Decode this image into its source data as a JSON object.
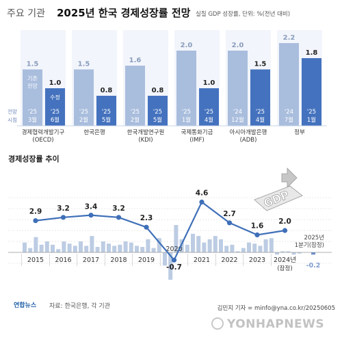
{
  "header": {
    "title_light": "주요 기관",
    "title_bold": "2025년 한국 경제성장률 전망",
    "subtitle": "실질 GDP 성장률, 단위: %(전년 대비)"
  },
  "top_chart": {
    "legend_prev": [
      "기존",
      "전망"
    ],
    "legend_rev": "수정",
    "legend_time": [
      "전망",
      "시점"
    ],
    "institutions": [
      {
        "name": [
          "경제협력개발기구",
          "(OECD)"
        ],
        "prev": 1.5,
        "rev": 1.0,
        "prev_label": "1.5",
        "rev_label": "1.0",
        "prev_time": [
          "'25",
          "3월"
        ],
        "rev_time": [
          "'25",
          "6월"
        ]
      },
      {
        "name": [
          "한국은행"
        ],
        "prev": 1.5,
        "rev": 0.8,
        "prev_label": "1.5",
        "rev_label": "0.8",
        "prev_time": [
          "'25",
          "2월"
        ],
        "rev_time": [
          "'25",
          "5월"
        ]
      },
      {
        "name": [
          "한국개발연구원",
          "(KDI)"
        ],
        "prev": 1.6,
        "rev": 0.8,
        "prev_label": "1.6",
        "rev_label": "0.8",
        "prev_time": [
          "'25",
          "2월"
        ],
        "rev_time": [
          "'25",
          "5월"
        ]
      },
      {
        "name": [
          "국제통화기금",
          "(IMF)"
        ],
        "prev": 2.0,
        "rev": 1.0,
        "prev_label": "2.0",
        "rev_label": "1.0",
        "prev_time": [
          "'25",
          "1월"
        ],
        "rev_time": [
          "'25",
          "4월"
        ]
      },
      {
        "name": [
          "아시아개발은행",
          "(ADB)"
        ],
        "prev": 2.0,
        "rev": 1.5,
        "prev_label": "2.0",
        "rev_label": "1.5",
        "prev_time": [
          "'24",
          "12월"
        ],
        "rev_time": [
          "'25",
          "4월"
        ]
      },
      {
        "name": [
          "정부"
        ],
        "prev": 2.2,
        "rev": 1.8,
        "prev_label": "2.2",
        "rev_label": "1.8",
        "prev_time": [
          "'24",
          "7월"
        ],
        "rev_time": [
          "'25",
          "1월"
        ]
      }
    ]
  },
  "bottom_chart": {
    "title": "경제성장률 추이",
    "annotation": [
      "2025년",
      "1분기(잠정)"
    ],
    "gdp_badge": "GDP",
    "last_label_note": "(잠정)"
  },
  "chart_data": [
    {
      "type": "bar",
      "title": "주요 기관 2025년 한국 경제성장률 전망",
      "ylabel": "실질 GDP 성장률 (%)",
      "categories": [
        "경제협력개발기구(OECD)",
        "한국은행",
        "한국개발연구원(KDI)",
        "국제통화기금(IMF)",
        "아시아개발은행(ADB)",
        "정부"
      ],
      "series": [
        {
          "name": "기존 전망",
          "values": [
            1.5,
            1.5,
            1.6,
            2.0,
            2.0,
            2.2
          ]
        },
        {
          "name": "수정",
          "values": [
            1.0,
            0.8,
            0.8,
            1.0,
            1.5,
            1.8
          ]
        }
      ],
      "ylim": [
        0,
        2.4
      ],
      "grid": false
    },
    {
      "type": "line",
      "title": "경제성장률 추이",
      "x": [
        "2015",
        "2016",
        "2017",
        "2018",
        "2019",
        "2020",
        "2021",
        "2022",
        "2023",
        "2024년"
      ],
      "values": [
        2.9,
        3.2,
        3.4,
        3.2,
        2.3,
        -0.7,
        4.6,
        2.7,
        1.6,
        2.0
      ],
      "labels": [
        "2.9",
        "3.2",
        "3.4",
        "3.2",
        "2.3",
        "-0.7",
        "4.6",
        "2.7",
        "1.6",
        "2.0"
      ],
      "ylim": [
        -1.5,
        5.5
      ],
      "annotation": {
        "text": "2025년 1분기(잠정)",
        "value": -0.2,
        "label": "-0.2"
      },
      "grid": true,
      "colors": {
        "line": "#3e6fb8",
        "marker": "#3e6fb8",
        "quarterly_bars": "#b5c6e0"
      }
    }
  ],
  "quarterly_bars": [
    0.9,
    0.4,
    1.4,
    0.7,
    1.0,
    0.7,
    0.3,
    1.0,
    0.8,
    0.6,
    1.0,
    0.6,
    1.5,
    0.5,
    1.0,
    0.8,
    0.6,
    0.7,
    1.0,
    0.9,
    0.6,
    0.5,
    1.2,
    0.4,
    1.3,
    -1.2,
    -2.5,
    2.5,
    1.2,
    0.7,
    1.7,
    1.5,
    0.9,
    1.2,
    1.5,
    1.2,
    0.6,
    0.7,
    0.1,
    0.4,
    0.9,
    0.8,
    0.6,
    1.2,
    1.3,
    -0.2,
    0.1,
    0.1,
    -0.2,
    -0.1
  ],
  "footer": {
    "logo_text": "연합뉴스",
    "source": "자료: 한국은행, 각 기관",
    "credit": "김민지 기자 = minfo@yna.co.kr/20250605",
    "watermark": "YONHAPNEWS"
  },
  "colors": {
    "prev_bar": "#a9bddd",
    "rev_bar": "#4472be",
    "panel_bg": "#f2f5fb",
    "line": "#3e6fb8"
  }
}
